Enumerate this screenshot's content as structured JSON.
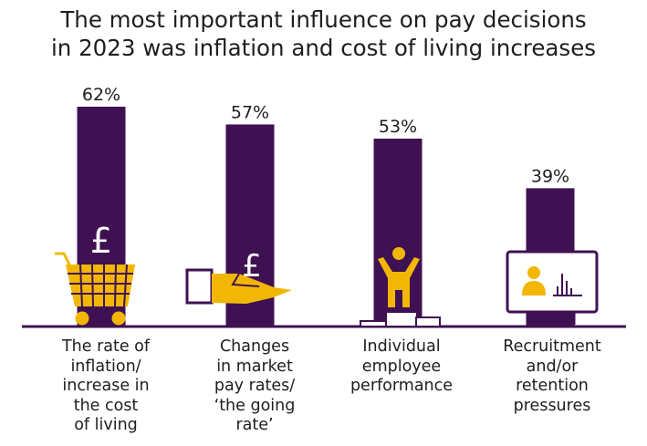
{
  "title_lines": [
    "The most important influence on pay decisions",
    "in 2023 was inflation and cost of living increases"
  ],
  "colors": {
    "bar": "#3f1152",
    "icon": "#f2b705",
    "text": "#1e1e1e",
    "axis": "#3f1152"
  },
  "icons": [
    "shopping-cart-pound-icon",
    "hand-pound-icon",
    "person-podium-icon",
    "monitor-recruitment-icon"
  ],
  "chart_data": {
    "type": "bar",
    "title": "The most important influence on pay decisions in 2023 was inflation and cost of living increases",
    "unit": "%",
    "categories": [
      [
        "The rate of",
        "inflation/",
        "increase in",
        "the cost",
        "of living"
      ],
      [
        "Changes",
        "in market",
        "pay rates/",
        "‘the going",
        "rate’"
      ],
      [
        "Individual",
        "employee",
        "performance"
      ],
      [
        "Recruitment",
        "and/or",
        "retention",
        "pressures"
      ]
    ],
    "values": [
      62,
      57,
      53,
      39
    ],
    "value_labels": [
      "62%",
      "57%",
      "53%",
      "39%"
    ],
    "icon_glyph": "£",
    "ylim": [
      0,
      100
    ]
  }
}
